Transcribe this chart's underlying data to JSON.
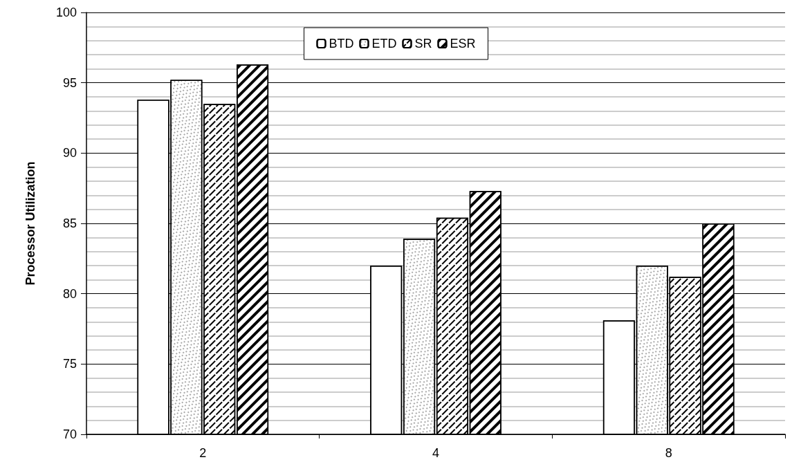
{
  "chart_data": {
    "type": "bar",
    "ylabel": "Processor Utilization",
    "categories": [
      "2",
      "4",
      "8"
    ],
    "series": [
      {
        "name": "BTD",
        "color": "#ffffff",
        "values": [
          93.8,
          82.0,
          78.1
        ]
      },
      {
        "name": "ETD",
        "color": "#ffffff",
        "values": [
          95.2,
          83.9,
          82.0
        ]
      },
      {
        "name": "SR",
        "color": "#ffffff",
        "values": [
          93.5,
          85.4,
          81.2
        ]
      },
      {
        "name": "ESR",
        "color": "#ffffff",
        "values": [
          96.3,
          87.3,
          85.0
        ]
      }
    ],
    "ylim": [
      70,
      100
    ],
    "yticks": [
      70,
      75,
      80,
      85,
      90,
      95,
      100
    ],
    "grid": "y",
    "legend": "top"
  }
}
